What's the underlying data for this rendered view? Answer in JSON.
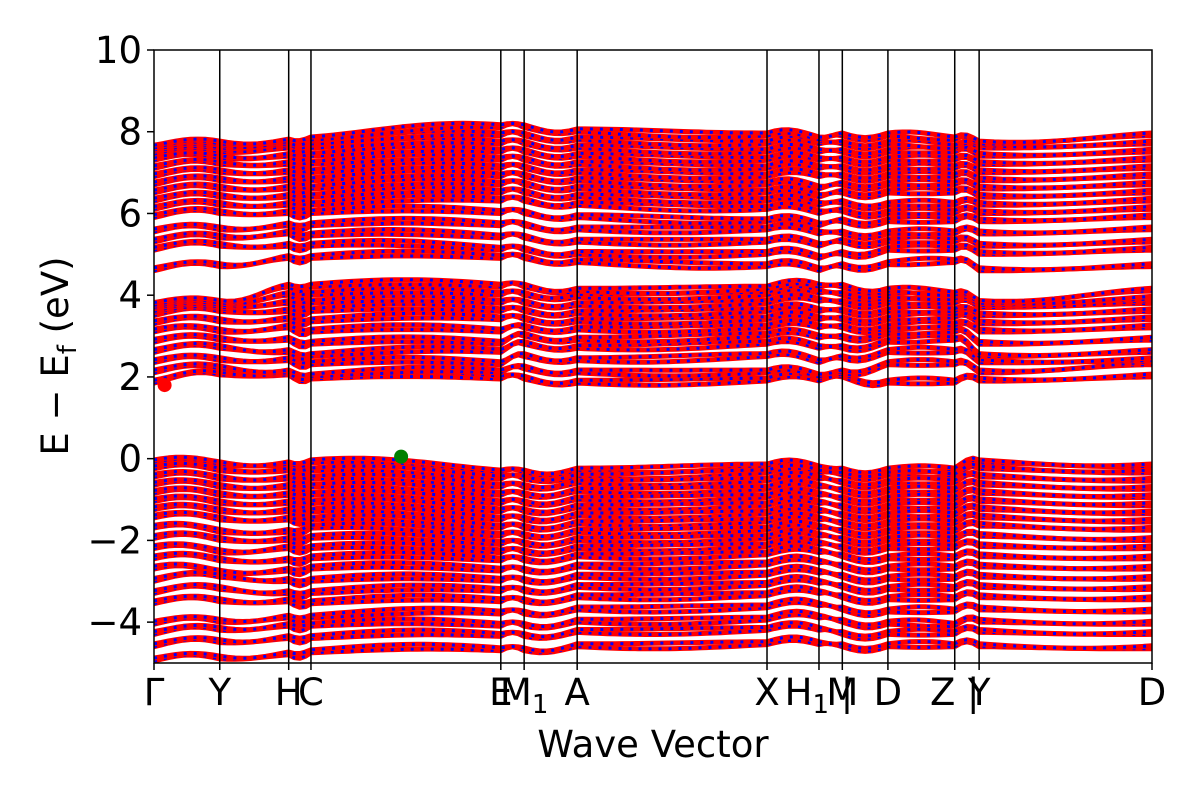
{
  "chart_data": {
    "type": "line",
    "title": "",
    "xlabel": "Wave Vector",
    "ylabel": {
      "prefix": "E − E",
      "subscript": "f",
      "suffix": " (eV)"
    },
    "ylim": [
      -5,
      10
    ],
    "yticks": [
      -4,
      -2,
      0,
      2,
      4,
      6,
      8,
      10
    ],
    "ytick_labels": [
      "−4",
      "−2",
      "0",
      "2",
      "4",
      "6",
      "8",
      "10"
    ],
    "grid": false,
    "legend": "none",
    "kpath_length": 9.41,
    "kpoints": [
      {
        "label": "Γ",
        "x": 0.0
      },
      {
        "label": "Y",
        "x": 0.62
      },
      {
        "label": "H",
        "x": 1.27
      },
      {
        "label": "C",
        "x": 1.48
      },
      {
        "label": "E",
        "x": 3.27
      },
      {
        "label": "M",
        "sub": "1",
        "x": 3.49
      },
      {
        "label": "A",
        "x": 3.99
      },
      {
        "label": "X",
        "x": 5.78
      },
      {
        "label": "H",
        "sub": "1",
        "x": 6.27,
        "suffix": " |"
      },
      {
        "label": "M",
        "x": 6.49
      },
      {
        "label": "D",
        "x": 6.92
      },
      {
        "label": "Z |",
        "x": 7.55
      },
      {
        "label": "Y",
        "x": 7.78
      },
      {
        "label": "D",
        "x": 9.41
      }
    ],
    "segment_breaks": [
      6.27,
      7.55
    ],
    "band_edges": {
      "cbm": {
        "x": 0.1,
        "y": 1.8,
        "color": "#ff0000"
      },
      "vbm": {
        "x": 2.33,
        "y": 0.05,
        "color": "#008000"
      }
    },
    "series": [
      {
        "spin": "up",
        "color": "#ff0000",
        "style": "solid"
      },
      {
        "spin": "down",
        "color": "#0000ff",
        "style": "dotted"
      }
    ],
    "bands": {
      "conduction": [
        [
          1.85,
          2.05,
          2.05,
          1.95,
          1.95,
          1.95,
          1.85,
          1.9,
          1.9,
          2.0,
          1.85,
          1.85,
          1.9,
          2.0
        ],
        [
          2.1,
          2.2,
          2.1,
          2.0,
          2.1,
          2.2,
          2.1,
          2.1,
          2.0,
          2.1,
          2.3,
          2.3,
          2.1,
          2.3
        ],
        [
          2.35,
          2.4,
          2.4,
          2.3,
          2.3,
          2.5,
          2.4,
          2.5,
          2.35,
          2.45,
          2.6,
          2.6,
          2.35,
          2.4
        ],
        [
          2.6,
          2.7,
          2.6,
          2.5,
          2.6,
          2.8,
          2.7,
          2.8,
          2.7,
          2.7,
          2.85,
          2.9,
          2.5,
          2.6
        ],
        [
          2.85,
          2.9,
          2.9,
          2.8,
          2.8,
          3.0,
          2.9,
          3.0,
          2.95,
          2.95,
          3.05,
          3.1,
          2.8,
          2.9
        ],
        [
          3.1,
          3.1,
          3.2,
          3.1,
          3.1,
          3.2,
          3.15,
          3.2,
          3.2,
          3.2,
          3.2,
          3.25,
          3.1,
          3.2
        ],
        [
          3.3,
          3.35,
          3.4,
          3.35,
          3.4,
          3.4,
          3.35,
          3.4,
          3.4,
          3.4,
          3.4,
          3.45,
          3.3,
          3.4
        ],
        [
          3.5,
          3.6,
          3.6,
          3.6,
          3.6,
          3.6,
          3.55,
          3.6,
          3.6,
          3.6,
          3.6,
          3.6,
          3.5,
          3.6
        ],
        [
          3.6,
          3.7,
          3.8,
          3.8,
          3.8,
          3.8,
          3.75,
          3.8,
          3.85,
          3.8,
          3.8,
          3.8,
          3.7,
          3.8
        ],
        [
          3.7,
          3.75,
          4.0,
          4.0,
          4.0,
          4.0,
          3.95,
          4.0,
          4.05,
          4.0,
          3.95,
          3.9,
          3.75,
          3.9
        ],
        [
          3.75,
          3.8,
          4.2,
          4.2,
          4.2,
          4.2,
          4.1,
          4.15,
          4.2,
          4.2,
          4.1,
          4.0,
          3.8,
          4.1
        ],
        [
          4.6,
          4.7,
          4.9,
          4.9,
          4.9,
          4.9,
          4.8,
          4.7,
          4.6,
          4.7,
          4.75,
          4.8,
          4.6,
          4.7
        ],
        [
          5.1,
          5.2,
          5.2,
          5.2,
          5.1,
          5.1,
          5.0,
          5.0,
          4.9,
          5.0,
          5.1,
          5.1,
          5.0,
          5.1
        ],
        [
          5.3,
          5.4,
          5.5,
          5.45,
          5.4,
          5.4,
          5.3,
          5.3,
          5.2,
          5.3,
          5.3,
          5.3,
          5.2,
          5.3
        ],
        [
          5.55,
          5.6,
          5.7,
          5.7,
          5.7,
          5.7,
          5.6,
          5.6,
          5.5,
          5.5,
          5.5,
          5.5,
          5.5,
          5.6
        ],
        [
          5.9,
          6.0,
          6.0,
          6.0,
          6.0,
          6.0,
          5.9,
          5.8,
          5.7,
          5.8,
          5.8,
          5.8,
          5.8,
          5.9
        ],
        [
          6.1,
          6.2,
          6.2,
          6.2,
          6.3,
          6.3,
          6.2,
          6.1,
          6.0,
          6.05,
          6.0,
          6.0,
          6.0,
          6.1
        ],
        [
          6.3,
          6.4,
          6.4,
          6.4,
          6.5,
          6.5,
          6.4,
          6.3,
          6.2,
          6.25,
          6.2,
          6.2,
          6.2,
          6.3
        ],
        [
          6.5,
          6.6,
          6.6,
          6.6,
          6.7,
          6.7,
          6.6,
          6.5,
          6.4,
          6.5,
          6.5,
          6.5,
          6.4,
          6.5
        ],
        [
          6.7,
          6.8,
          6.8,
          6.8,
          6.9,
          6.9,
          6.8,
          6.7,
          6.6,
          6.7,
          6.7,
          6.7,
          6.6,
          6.7
        ],
        [
          6.9,
          7.0,
          7.0,
          7.0,
          7.1,
          7.1,
          7.0,
          6.9,
          6.9,
          6.9,
          6.9,
          6.9,
          6.8,
          6.9
        ],
        [
          7.1,
          7.2,
          7.2,
          7.2,
          7.3,
          7.3,
          7.2,
          7.1,
          7.1,
          7.1,
          7.1,
          7.1,
          7.0,
          7.1
        ],
        [
          7.3,
          7.35,
          7.4,
          7.4,
          7.5,
          7.5,
          7.4,
          7.3,
          7.3,
          7.3,
          7.3,
          7.3,
          7.2,
          7.3
        ],
        [
          7.45,
          7.5,
          7.6,
          7.6,
          7.7,
          7.7,
          7.6,
          7.5,
          7.5,
          7.5,
          7.5,
          7.5,
          7.4,
          7.5
        ],
        [
          7.55,
          7.6,
          7.7,
          7.7,
          7.9,
          7.9,
          7.8,
          7.7,
          7.7,
          7.7,
          7.7,
          7.6,
          7.6,
          7.7
        ],
        [
          7.6,
          7.7,
          7.75,
          7.8,
          8.1,
          8.1,
          8.0,
          7.9,
          7.8,
          7.9,
          7.9,
          7.8,
          7.7,
          7.9
        ]
      ],
      "valence": [
        [
          -0.1,
          -0.15,
          -0.15,
          -0.1,
          -0.35,
          -0.35,
          -0.3,
          -0.2,
          -0.25,
          -0.3,
          -0.3,
          -0.3,
          -0.1,
          -0.2
        ],
        [
          -0.25,
          -0.3,
          -0.3,
          -0.3,
          -0.5,
          -0.5,
          -0.45,
          -0.35,
          -0.35,
          -0.4,
          -0.4,
          -0.45,
          -0.25,
          -0.35
        ],
        [
          -0.45,
          -0.5,
          -0.5,
          -0.5,
          -0.7,
          -0.7,
          -0.6,
          -0.55,
          -0.5,
          -0.6,
          -0.6,
          -0.6,
          -0.45,
          -0.55
        ],
        [
          -0.65,
          -0.7,
          -0.7,
          -0.7,
          -0.9,
          -0.9,
          -0.8,
          -0.75,
          -0.7,
          -0.8,
          -0.8,
          -0.8,
          -0.65,
          -0.75
        ],
        [
          -0.85,
          -0.9,
          -0.9,
          -0.9,
          -1.1,
          -1.1,
          -1.0,
          -0.95,
          -0.9,
          -1.0,
          -1.0,
          -1.0,
          -0.85,
          -0.95
        ],
        [
          -1.05,
          -1.1,
          -1.1,
          -1.1,
          -1.3,
          -1.3,
          -1.2,
          -1.15,
          -1.1,
          -1.2,
          -1.2,
          -1.2,
          -1.05,
          -1.15
        ],
        [
          -1.25,
          -1.3,
          -1.3,
          -1.3,
          -1.5,
          -1.5,
          -1.4,
          -1.35,
          -1.3,
          -1.4,
          -1.4,
          -1.4,
          -1.25,
          -1.35
        ],
        [
          -1.45,
          -1.5,
          -1.5,
          -1.5,
          -1.7,
          -1.7,
          -1.6,
          -1.55,
          -1.5,
          -1.6,
          -1.6,
          -1.6,
          -1.45,
          -1.55
        ],
        [
          -1.7,
          -1.8,
          -1.8,
          -1.7,
          -1.9,
          -1.9,
          -1.8,
          -1.75,
          -1.7,
          -1.8,
          -1.8,
          -1.8,
          -1.65,
          -1.75
        ],
        [
          -1.95,
          -2.0,
          -2.0,
          -1.95,
          -2.1,
          -2.1,
          -2.0,
          -1.95,
          -1.9,
          -2.0,
          -2.0,
          -2.0,
          -1.9,
          -2.0
        ],
        [
          -2.2,
          -2.3,
          -2.2,
          -2.2,
          -2.3,
          -2.3,
          -2.2,
          -2.15,
          -2.1,
          -2.2,
          -2.2,
          -2.2,
          -2.15,
          -2.2
        ],
        [
          -2.45,
          -2.5,
          -2.5,
          -2.45,
          -2.5,
          -2.5,
          -2.4,
          -2.35,
          -2.3,
          -2.4,
          -2.45,
          -2.45,
          -2.4,
          -2.45
        ],
        [
          -2.7,
          -2.8,
          -2.75,
          -2.7,
          -2.75,
          -2.75,
          -2.65,
          -2.6,
          -2.55,
          -2.65,
          -2.7,
          -2.7,
          -2.65,
          -2.7
        ],
        [
          -3.0,
          -2.9,
          -3.0,
          -3.0,
          -3.0,
          -3.0,
          -2.9,
          -2.85,
          -2.8,
          -2.9,
          -2.95,
          -2.95,
          -2.9,
          -2.95
        ],
        [
          -3.3,
          -3.2,
          -3.3,
          -3.3,
          -3.25,
          -3.25,
          -3.15,
          -3.1,
          -3.05,
          -3.15,
          -3.2,
          -3.2,
          -3.15,
          -3.2
        ],
        [
          -3.55,
          -3.5,
          -3.5,
          -3.55,
          -3.5,
          -3.5,
          -3.4,
          -3.35,
          -3.3,
          -3.4,
          -3.45,
          -3.45,
          -3.4,
          -3.45
        ],
        [
          -4.05,
          -4.0,
          -3.9,
          -3.9,
          -3.8,
          -3.8,
          -3.7,
          -3.65,
          -3.6,
          -3.7,
          -3.75,
          -3.75,
          -3.7,
          -3.75
        ],
        [
          -4.3,
          -4.2,
          -4.1,
          -4.1,
          -4.1,
          -4.1,
          -4.0,
          -3.95,
          -3.9,
          -4.0,
          -4.05,
          -4.1,
          -4.0,
          -4.05
        ],
        [
          -4.6,
          -4.5,
          -4.4,
          -4.4,
          -4.35,
          -4.35,
          -4.25,
          -4.2,
          -4.2,
          -4.3,
          -4.3,
          -4.3,
          -4.25,
          -4.3
        ],
        [
          -4.95,
          -4.9,
          -4.8,
          -4.75,
          -4.7,
          -4.7,
          -4.6,
          -4.55,
          -4.55,
          -4.6,
          -4.6,
          -4.6,
          -4.6,
          -4.65
        ]
      ]
    }
  }
}
